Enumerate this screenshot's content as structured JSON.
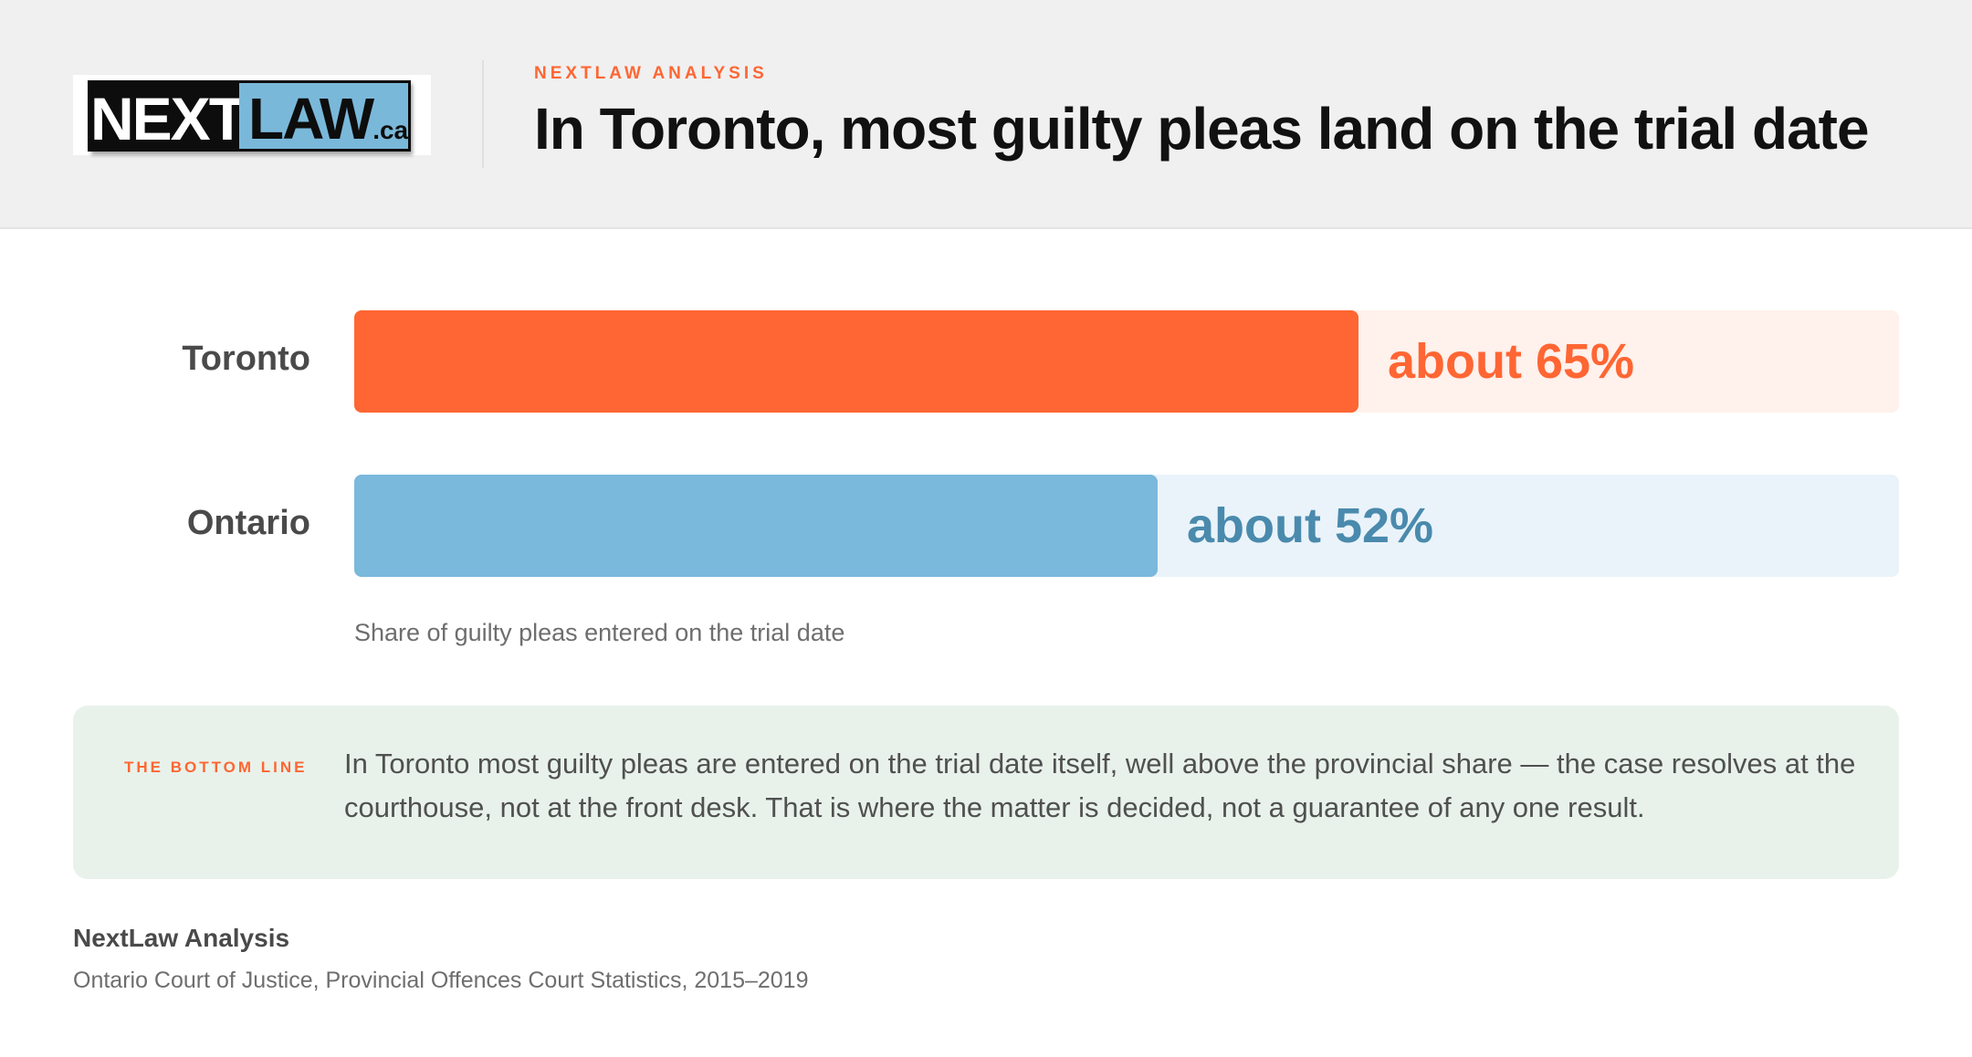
{
  "header": {
    "logo": {
      "next": "NEXT",
      "law": "LAW",
      "tld": ".ca"
    },
    "kicker": "NEXTLAW ANALYSIS",
    "title": "In Toronto, most guilty pleas land on the trial date"
  },
  "chart_data": {
    "type": "bar",
    "orientation": "horizontal",
    "categories": [
      "Toronto",
      "Ontario"
    ],
    "values": [
      65,
      52
    ],
    "value_labels": [
      "about 65%",
      "about 52%"
    ],
    "colors": [
      "#ff6633",
      "#7ab8dc"
    ],
    "track_colors": [
      "#fff1ec",
      "#eaf3fa"
    ],
    "label_colors": [
      "#ff6633",
      "#4a8aad"
    ],
    "xlim": [
      0,
      100
    ],
    "unit": "%",
    "xlabel": "Share of guilty pleas entered on the trial date",
    "grid": false
  },
  "bottom_line": {
    "tag": "THE BOTTOM LINE",
    "text": "In Toronto most guilty pleas are entered on the trial date itself, well above the provincial share — the case resolves at the courthouse, not at the front desk. That is where the matter is decided, not a guarantee of any one result."
  },
  "source": {
    "title": "NextLaw Analysis",
    "text": "Ontario Court of Justice, Provincial Offences Court Statistics, 2015–2019"
  }
}
